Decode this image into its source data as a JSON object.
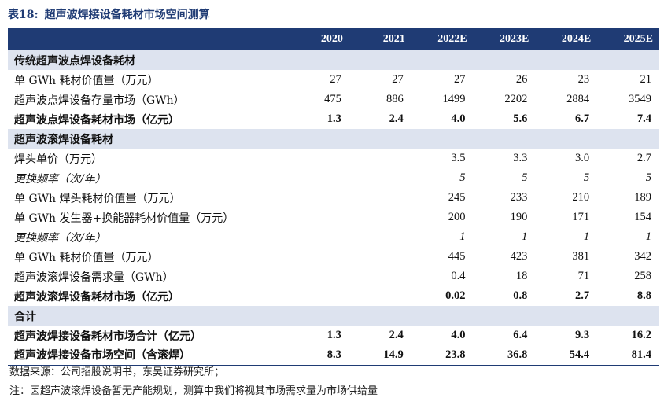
{
  "title": {
    "number": "表18:",
    "text": "超声波焊接设备耗材市场空间测算"
  },
  "columns": [
    "",
    "2020",
    "2021",
    "2022E",
    "2023E",
    "2024E",
    "2025E"
  ],
  "rows": [
    {
      "type": "section",
      "label": "传统超声波点焊设备耗材",
      "values": [
        "",
        "",
        "",
        "",
        "",
        ""
      ]
    },
    {
      "type": "normal",
      "label": "单 GWh 耗材价值量（万元）",
      "values": [
        "27",
        "27",
        "27",
        "26",
        "23",
        "21"
      ]
    },
    {
      "type": "normal",
      "label": "超声波点焊设备存量市场（GWh）",
      "values": [
        "475",
        "886",
        "1499",
        "2202",
        "2884",
        "3549"
      ]
    },
    {
      "type": "bold",
      "label": "超声波点焊设备耗材市场（亿元）",
      "values": [
        "1.3",
        "2.4",
        "4.0",
        "5.6",
        "6.7",
        "7.4"
      ]
    },
    {
      "type": "section",
      "label": "超声波滚焊设备耗材",
      "values": [
        "",
        "",
        "",
        "",
        "",
        ""
      ]
    },
    {
      "type": "normal",
      "label": "焊头单价（万元）",
      "values": [
        "",
        "",
        "3.5",
        "3.3",
        "3.0",
        "2.7"
      ]
    },
    {
      "type": "italic",
      "label": "更换频率（次/年）",
      "values": [
        "",
        "",
        "5",
        "5",
        "5",
        "5"
      ]
    },
    {
      "type": "normal",
      "label": "单 GWh 焊头耗材价值量（万元）",
      "values": [
        "",
        "",
        "245",
        "233",
        "210",
        "189"
      ]
    },
    {
      "type": "normal",
      "label": "单 GWh 发生器+换能器耗材价值量（万元）",
      "values": [
        "",
        "",
        "200",
        "190",
        "171",
        "154"
      ]
    },
    {
      "type": "italic",
      "label": "更换频率（次/年）",
      "values": [
        "",
        "",
        "1",
        "1",
        "1",
        "1"
      ]
    },
    {
      "type": "normal",
      "label": "单 GWh 耗材价值量（万元）",
      "values": [
        "",
        "",
        "445",
        "423",
        "381",
        "342"
      ]
    },
    {
      "type": "normal",
      "label": "超声波滚焊设备需求量（GWh）",
      "values": [
        "",
        "",
        "0.4",
        "18",
        "71",
        "258"
      ]
    },
    {
      "type": "bold",
      "label": "超声波滚焊设备耗材市场（亿元）",
      "values": [
        "",
        "",
        "0.02",
        "0.8",
        "2.7",
        "8.8"
      ]
    },
    {
      "type": "section",
      "label": "合计",
      "values": [
        "",
        "",
        "",
        "",
        "",
        ""
      ]
    },
    {
      "type": "bold",
      "label": "超声波焊接设备耗材市场合计（亿元）",
      "values": [
        "1.3",
        "2.4",
        "4.0",
        "6.4",
        "9.3",
        "16.2"
      ]
    },
    {
      "type": "bold-last",
      "label": "超声波焊接设备市场空间（含滚焊）",
      "values": [
        "8.3",
        "14.9",
        "23.8",
        "36.8",
        "54.4",
        "81.4"
      ]
    }
  ],
  "source": "数据来源：公司招股说明书，东吴证券研究所；",
  "note": "注：因超声波滚焊设备暂无产能规划，测算中我们将视其市场需求量为市场供给量",
  "colors": {
    "header_bg": "#1f3b74",
    "section_bg": "#dde3ef",
    "title_color": "#1f3b74"
  }
}
